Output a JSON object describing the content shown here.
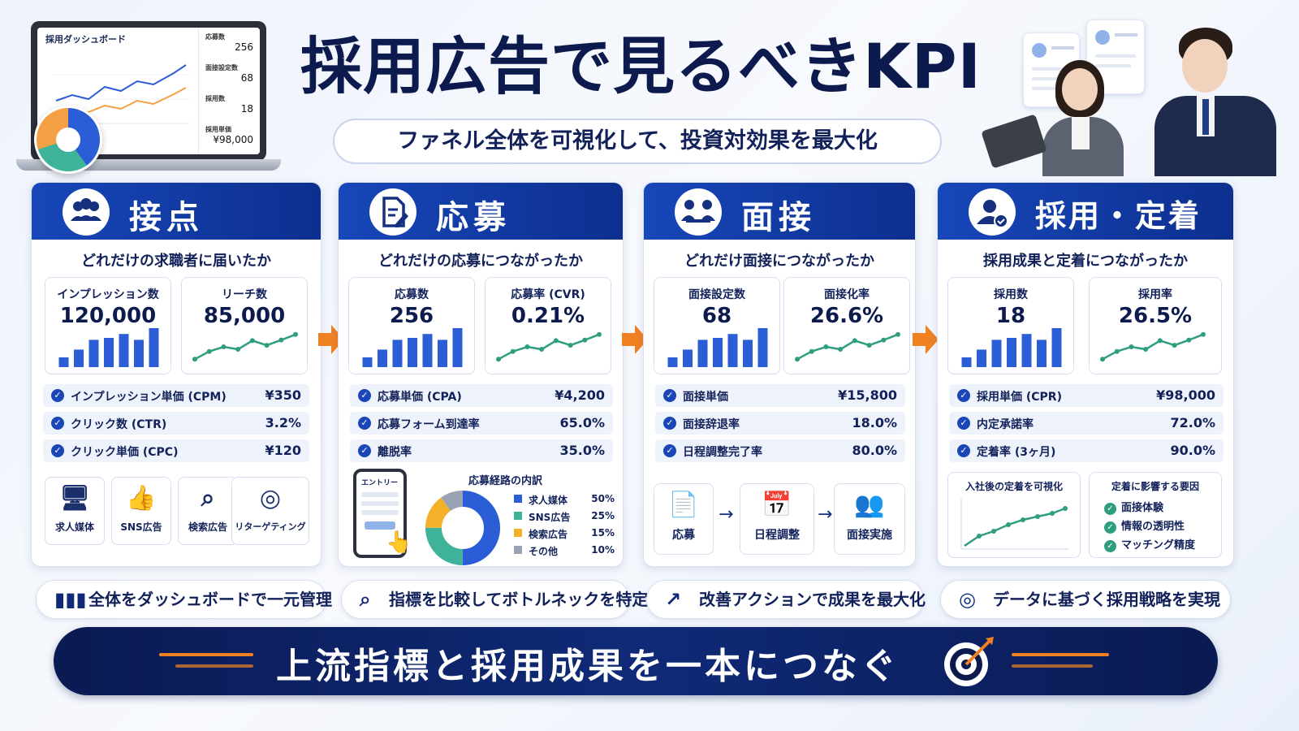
{
  "header": {
    "title": "採用広告で見るべきKPI",
    "subtitle": "ファネル全体を可視化して、投資対効果を最大化"
  },
  "laptop": {
    "dash_title": "採用ダッシュボード",
    "stats": [
      {
        "label": "応募数",
        "value": "256"
      },
      {
        "label": "面接設定数",
        "value": "68"
      },
      {
        "label": "採用数",
        "value": "18"
      },
      {
        "label": "採用単価",
        "value": "¥98,000"
      }
    ]
  },
  "stages": [
    {
      "title": "接点",
      "icon": "people-group-icon",
      "question": "どれだけの求職者に届いたか",
      "kpis": [
        {
          "label": "インプレッション数",
          "value": "120,000",
          "chart": "bar"
        },
        {
          "label": "リーチ数",
          "value": "85,000",
          "chart": "line"
        }
      ],
      "metrics": [
        {
          "label": "インプレッション単価 (CPM)",
          "value": "¥350"
        },
        {
          "label": "クリック数 (CTR)",
          "value": "3.2%"
        },
        {
          "label": "クリック単価 (CPC)",
          "value": "¥120"
        }
      ],
      "channels": [
        {
          "label": "求人媒体",
          "icon": "monitor-icon"
        },
        {
          "label": "SNS広告",
          "icon": "thumbs-up-icon"
        },
        {
          "label": "検索広告",
          "icon": "search-icon"
        },
        {
          "label": "リターゲティング",
          "icon": "target-icon"
        }
      ]
    },
    {
      "title": "応募",
      "icon": "document-edit-icon",
      "question": "どれだけの応募につながったか",
      "kpis": [
        {
          "label": "応募数",
          "value": "256",
          "chart": "bar"
        },
        {
          "label": "応募率 (CVR)",
          "value": "0.21%",
          "chart": "line"
        }
      ],
      "metrics": [
        {
          "label": "応募単価 (CPA)",
          "value": "¥4,200"
        },
        {
          "label": "応募フォーム到達率",
          "value": "65.0%"
        },
        {
          "label": "離脱率",
          "value": "35.0%"
        }
      ],
      "phone_label": "エントリー",
      "route_title": "応募経路の内訳",
      "routes": [
        {
          "label": "求人媒体",
          "value": "50%",
          "share": 50,
          "color": "#2b5dd6"
        },
        {
          "label": "SNS広告",
          "value": "25%",
          "share": 25,
          "color": "#3eb39a"
        },
        {
          "label": "検索広告",
          "value": "15%",
          "share": 15,
          "color": "#f3b129"
        },
        {
          "label": "その他",
          "value": "10%",
          "share": 10,
          "color": "#9aa3b3"
        }
      ]
    },
    {
      "title": "面接",
      "icon": "interview-icon",
      "question": "どれだけ面接につながったか",
      "kpis": [
        {
          "label": "面接設定数",
          "value": "68",
          "chart": "bar"
        },
        {
          "label": "面接化率",
          "value": "26.6%",
          "chart": "line"
        }
      ],
      "metrics": [
        {
          "label": "面接単価",
          "value": "¥15,800"
        },
        {
          "label": "面接辞退率",
          "value": "18.0%"
        },
        {
          "label": "日程調整完了率",
          "value": "80.0%"
        }
      ],
      "flow": [
        {
          "label": "応募",
          "icon": "document-icon"
        },
        {
          "label": "日程調整",
          "icon": "calendar-icon"
        },
        {
          "label": "面接実施",
          "icon": "meeting-icon"
        }
      ]
    },
    {
      "title": "採用・定着",
      "icon": "user-check-icon",
      "question": "採用成果と定着につながったか",
      "kpis": [
        {
          "label": "採用数",
          "value": "18",
          "chart": "bar"
        },
        {
          "label": "採用率",
          "value": "26.5%",
          "chart": "line"
        }
      ],
      "metrics": [
        {
          "label": "採用単価 (CPR)",
          "value": "¥98,000"
        },
        {
          "label": "内定承諾率",
          "value": "72.0%"
        },
        {
          "label": "定着率 (3ヶ月)",
          "value": "90.0%"
        }
      ],
      "retention_title": "入社後の定着を可視化",
      "factors_title": "定着に影響する要因",
      "factors": [
        "面接体験",
        "情報の透明性",
        "マッチング精度"
      ]
    }
  ],
  "actions": [
    {
      "label": "全体をダッシュボードで一元管理",
      "icon": "bar-chart-icon"
    },
    {
      "label": "指標を比較してボトルネックを特定",
      "icon": "search-icon"
    },
    {
      "label": "改善アクションで成果を最大化",
      "icon": "trend-up-icon"
    },
    {
      "label": "データに基づく採用戦略を実現",
      "icon": "target-icon"
    }
  ],
  "footer": {
    "text": "上流指標と採用成果を一本につなぐ"
  },
  "colors": {
    "primary": "#1747b9",
    "navy": "#0c1a4d",
    "accent": "#f08122",
    "teal": "#2f9d7f"
  }
}
